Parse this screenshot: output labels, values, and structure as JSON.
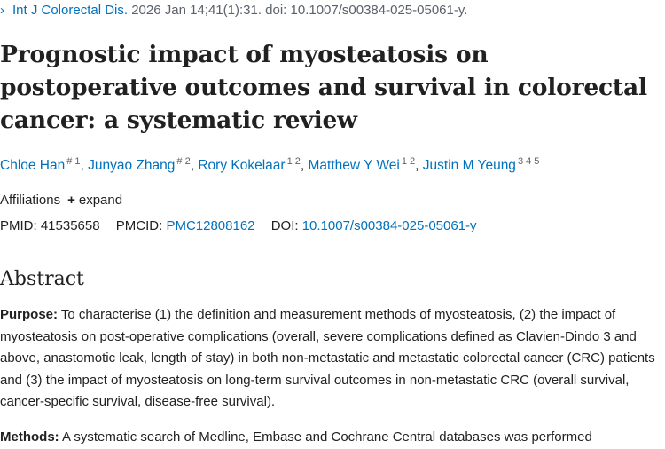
{
  "citation": {
    "journal": "Int J Colorectal Dis.",
    "details": " 2026 Jan 14;41(1):31. doi: 10.1007/s00384-025-05061-y."
  },
  "title": "Prognostic impact of myosteatosis on postoperative outcomes and survival in colorectal cancer: a systematic review",
  "authors": [
    {
      "name": "Chloe Han",
      "sup": "# 1"
    },
    {
      "name": "Junyao Zhang",
      "sup": "# 2"
    },
    {
      "name": "Rory Kokelaar",
      "sup": "1 2"
    },
    {
      "name": "Matthew Y Wei",
      "sup": "1 2"
    },
    {
      "name": "Justin M Yeung",
      "sup": "3 4 5"
    }
  ],
  "affiliations": {
    "label": "Affiliations",
    "expand": "expand"
  },
  "ids": {
    "pmid_label": "PMID:",
    "pmid": "41535658",
    "pmcid_label": "PMCID:",
    "pmcid": "PMC12808162",
    "doi_label": "DOI:",
    "doi": "10.1007/s00384-025-05061-y"
  },
  "abstract": {
    "heading": "Abstract",
    "purpose_label": "Purpose:",
    "purpose_text": " To characterise (1) the definition and measurement methods of myosteatosis, (2) the impact of myosteatosis on post-operative complications (overall, severe complications defined as Clavien-Dindo 3 and above, anastomotic leak, length of stay) in both non-metastatic and metastatic colorectal cancer (CRC) patients and (3) the impact of myosteatosis on long-term survival outcomes in non-metastatic CRC (overall survival, cancer-specific survival, disease-free survival).",
    "methods_label": "Methods:",
    "methods_text": " A systematic search of Medline, Embase and Cochrane Central databases was performed"
  }
}
